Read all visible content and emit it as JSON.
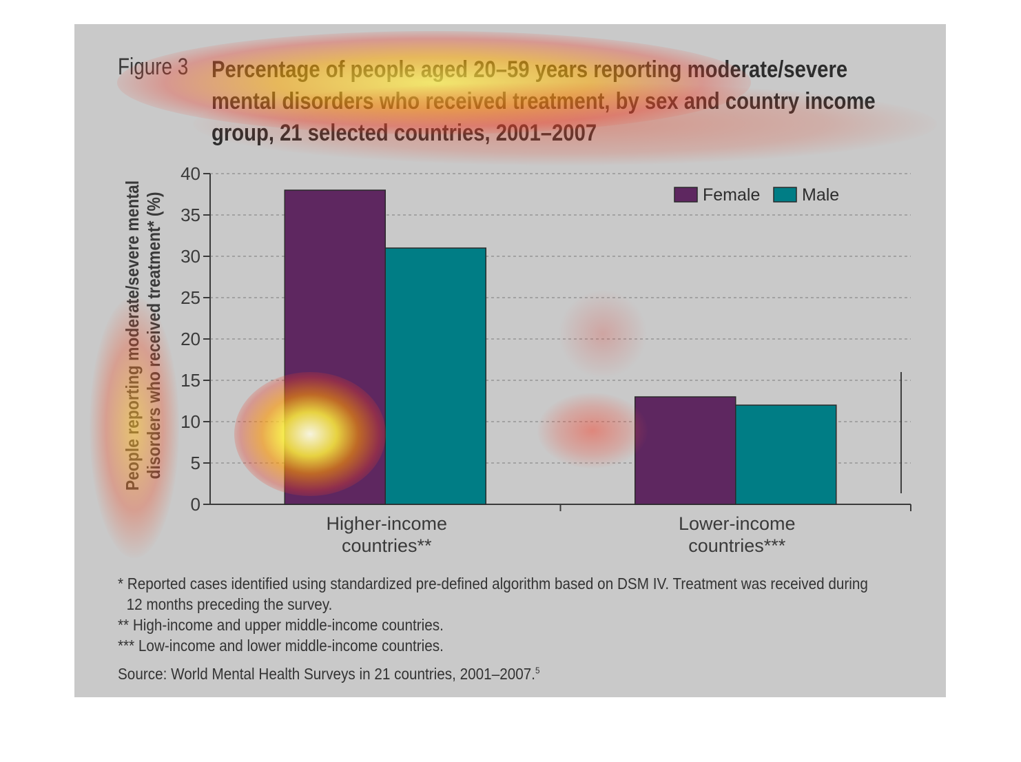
{
  "figure_label": "Figure 3",
  "title": "Percentage of people aged 20–59 years reporting moderate/severe mental disorders who received treatment, by sex and country income group, 21 selected countries, 2001–2007",
  "ylabel": "People reporting moderate/severe mental disorders who received treatment* (%)",
  "notes": {
    "note1_line1": "* Reported cases identified using standardized pre-defined algorithm based on DSM IV. Treatment was received during",
    "note1_line2": "12 months preceding the survey.",
    "note2": "** High-income and upper middle-income countries.",
    "note3": "*** Low-income and lower middle-income countries."
  },
  "source": "Source: World Mental Health Surveys in 21 countries, 2001–2007.",
  "source_ref": "5",
  "colors": {
    "female": "#5e2760",
    "male": "#007d85",
    "panel": "#c9c9c9",
    "axis": "#3a3a3a",
    "grid": "#8a8a8a"
  },
  "chart_data": {
    "type": "bar",
    "categories": [
      "Higher-income countries**",
      "Lower-income countries***"
    ],
    "category_lines": [
      [
        "Higher-income",
        "countries**"
      ],
      [
        "Lower-income",
        "countries***"
      ]
    ],
    "series": [
      {
        "name": "Female",
        "values": [
          38,
          13
        ]
      },
      {
        "name": "Male",
        "values": [
          31,
          12
        ]
      }
    ],
    "yticks": [
      0,
      5,
      10,
      15,
      20,
      25,
      30,
      35,
      40
    ],
    "ylim": [
      0,
      40
    ],
    "grid": true,
    "legend_position": "top-right"
  }
}
